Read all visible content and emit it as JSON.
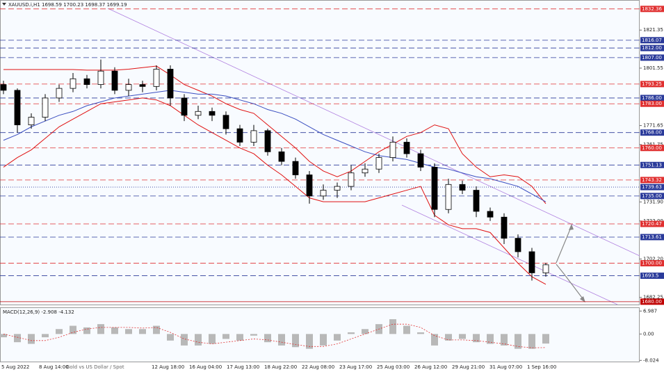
{
  "chart_data": {
    "type": "candlestick",
    "symbol": "XAUUSD.i,H1",
    "header_ohlc": [
      1698.59,
      1700.23,
      1698.37,
      1699.19
    ],
    "watermark": "Gold vs US Dollar / Spot",
    "x_labels": [
      "5 Aug 2022",
      "8 Aug 14:00",
      "12 Aug 18:00",
      "16 Aug 04:00",
      "17 Aug 13:00",
      "18 Aug 22:00",
      "22 Aug 08:00",
      "23 Aug 17:00",
      "25 Aug 03:00",
      "26 Aug 12:00",
      "29 Aug 21:00",
      "31 Aug 07:00",
      "1 Sep 16:00"
    ],
    "ylim": [
      1678.5,
      1837
    ],
    "yticks": [
      {
        "value": 1821.35,
        "label": "1821.35"
      },
      {
        "value": 1801.55,
        "label": "1801.55"
      },
      {
        "value": 1771.65,
        "label": "1771.65"
      },
      {
        "value": 1761.75,
        "label": "1761.75"
      },
      {
        "value": 1731.9,
        "label": "1731.90"
      },
      {
        "value": 1722,
        "label": "1722.00"
      },
      {
        "value": 1702.2,
        "label": "1702.20"
      },
      {
        "value": 1682.25,
        "label": "1682.25"
      }
    ],
    "levels": [
      {
        "value": 1832.36,
        "color": "#e03030",
        "style": "dashed"
      },
      {
        "value": 1816.07,
        "color": "#2a3a9a",
        "style": "dashed"
      },
      {
        "value": {
          "value": 1812,
          "label": "1812.00"
        },
        "color": "#2a3a9a",
        "style": "dashed"
      },
      {
        "value": {
          "value": 1807,
          "label": "1807.00"
        },
        "color": "#2a3a9a",
        "style": "dashed"
      },
      {
        "value": 1793.25,
        "color": "#e03030",
        "style": "dashed"
      },
      {
        "value": {
          "value": 1786,
          "label": "1786.00"
        },
        "color": "#2a3a9a",
        "style": "dashed"
      },
      {
        "value": {
          "value": 1783,
          "label": "1783.00"
        },
        "color": "#e03030",
        "style": "dashed"
      },
      {
        "value": {
          "value": 1768,
          "label": "1768.00"
        },
        "color": "#2a3a9a",
        "style": "dashed"
      },
      {
        "value": {
          "value": 1760,
          "label": "1760.00"
        },
        "color": "#e03030",
        "style": "dashed"
      },
      {
        "value": 1751.13,
        "color": "#2a3a9a",
        "style": "dashed"
      },
      {
        "value": 1743.32,
        "color": "#e03030",
        "style": "dashed"
      },
      {
        "value": 1739.63,
        "color": "#2a3a9a",
        "style": "dotted"
      },
      {
        "value": {
          "value": 1735,
          "label": "1735.00"
        },
        "color": "#2a3a9a",
        "style": "dashed"
      },
      {
        "value": 1720.47,
        "color": "#e03030",
        "style": "dashed"
      },
      {
        "value": 1713.61,
        "color": "#2a3a9a",
        "style": "dashed"
      },
      {
        "value": {
          "value": 1700,
          "label": "1700.00"
        },
        "color": "#e03030",
        "style": "dashed"
      },
      {
        "value": 1693.5,
        "color": "#2a3a9a",
        "style": "dashed"
      },
      {
        "value": {
          "value": 1680,
          "label": "1680.00"
        },
        "color": "#c00000",
        "style": "solid"
      }
    ],
    "candles": {
      "open": [
        1793,
        1790,
        1772,
        1776,
        1786,
        1791,
        1796,
        1793,
        1800,
        1790,
        1793,
        1792,
        1801,
        1786,
        1777,
        1779,
        1777,
        1770,
        1763,
        1769,
        1758,
        1753,
        1746,
        1735,
        1738,
        1740,
        1747,
        1749,
        1755,
        1763,
        1757,
        1750,
        1728,
        1741,
        1738,
        1727,
        1724,
        1713,
        1706,
        1695
      ],
      "high": [
        1795,
        1791,
        1778,
        1788,
        1793,
        1799,
        1798,
        1806,
        1802,
        1796,
        1795,
        1803,
        1803,
        1788,
        1782,
        1781,
        1779,
        1772,
        1772,
        1770,
        1760,
        1755,
        1748,
        1741,
        1742,
        1751,
        1752,
        1757,
        1766,
        1765,
        1759,
        1752,
        1744,
        1743,
        1740,
        1729,
        1726,
        1715,
        1708,
        1700.23
      ],
      "low": [
        1788,
        1768,
        1770,
        1774,
        1784,
        1789,
        1791,
        1791,
        1788,
        1787,
        1789,
        1790,
        1782,
        1774,
        1775,
        1774,
        1767,
        1761,
        1761,
        1756,
        1751,
        1744,
        1731,
        1733,
        1734,
        1738,
        1745,
        1747,
        1753,
        1755,
        1748,
        1724,
        1726,
        1736,
        1724,
        1722,
        1710,
        1703,
        1691,
        1693
      ],
      "close": [
        1790,
        1772,
        1776,
        1786,
        1791,
        1796,
        1793,
        1800,
        1790,
        1793,
        1792,
        1801,
        1786,
        1777,
        1779,
        1777,
        1770,
        1763,
        1769,
        1758,
        1753,
        1746,
        1735,
        1738,
        1740,
        1747,
        1749,
        1755,
        1763,
        1757,
        1750,
        1728,
        1741,
        1738,
        1727,
        1724,
        1713,
        1706,
        1695,
        1699.19
      ]
    },
    "bands": [
      {
        "color": "#e01010",
        "values": [
          1800.8,
          1800.8,
          1800.8,
          1800.8,
          1800.8,
          1800.8,
          1800.5,
          1800.5,
          1800.5,
          1801,
          1801.8,
          1802.6,
          1798,
          1793,
          1790,
          1787,
          1783,
          1780,
          1778,
          1772,
          1766,
          1760,
          1753,
          1748,
          1745,
          1748,
          1753,
          1758,
          1762,
          1766,
          1768,
          1772,
          1770,
          1757,
          1750,
          1745,
          1746,
          1745,
          1740,
          1731
        ]
      },
      {
        "color": "#e01010",
        "values": [
          1750,
          1755,
          1759,
          1765,
          1771,
          1775,
          1779,
          1783,
          1784,
          1785,
          1786,
          1785,
          1782,
          1777,
          1772,
          1768,
          1764,
          1760,
          1757,
          1751,
          1746,
          1740,
          1734,
          1732,
          1732,
          1732,
          1732,
          1734,
          1736,
          1738,
          1740,
          1725,
          1720,
          1718,
          1718,
          1716,
          1708,
          1700,
          1693,
          1689
        ]
      },
      {
        "color": "#3a4ec0",
        "values": [
          1764,
          1767,
          1771,
          1774,
          1777,
          1779,
          1782,
          1784,
          1786,
          1787,
          1788,
          1789,
          1790,
          1789,
          1788,
          1788,
          1787,
          1785,
          1783,
          1780,
          1778,
          1775,
          1771,
          1767,
          1764,
          1761,
          1758,
          1756,
          1755,
          1754,
          1752,
          1750,
          1749,
          1747,
          1745,
          1744,
          1742,
          1740,
          1736,
          1732
        ]
      }
    ],
    "macd": {
      "label": "MACD(12,26,9)",
      "ylim": [
        -8.6,
        7.9
      ],
      "yticks": [
        6.987,
        {
          "value": 0,
          "label": "0.00"
        },
        -8.024
      ],
      "histogram": [
        -1,
        -2.5,
        -3,
        -1,
        1.5,
        2.5,
        2,
        3,
        2,
        1.5,
        1.5,
        2.5,
        -2,
        -3.5,
        -3.5,
        -3,
        -1.5,
        -2,
        -0.5,
        -2.5,
        -3.5,
        -4,
        -4.5,
        -3.5,
        -2,
        0.5,
        1.5,
        3,
        4.5,
        2.5,
        0.5,
        -3.5,
        -2,
        -1.5,
        -2.5,
        -3,
        -3.5,
        -4.5,
        -4.5,
        -2.908
      ],
      "signal": [
        0,
        -1,
        -2,
        -2,
        -1,
        0.5,
        1.5,
        2,
        2,
        2,
        1.8,
        2,
        0.5,
        -1.5,
        -2.5,
        -3,
        -2.5,
        -2,
        -1.5,
        -1.8,
        -2.5,
        -3.2,
        -3.8,
        -3.8,
        -3,
        -1.5,
        0,
        1.5,
        3,
        3,
        2,
        -0.5,
        -1.8,
        -1.8,
        -2,
        -2.5,
        -3,
        -3.8,
        -4.2,
        -4.132
      ]
    }
  }
}
